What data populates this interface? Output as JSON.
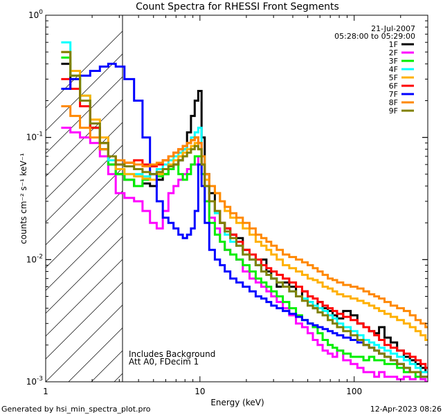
{
  "chart_data": {
    "type": "line",
    "title": "Count Spectra for RHESSI Front Segments",
    "xlabel": "Energy (keV)",
    "ylabel": "counts cm⁻² s⁻¹ keV⁻¹",
    "xscale": "log",
    "yscale": "log",
    "xlim": [
      1,
      300
    ],
    "ylim": [
      0.001,
      1
    ],
    "x_ticks": [
      {
        "value": 1,
        "label": "1"
      },
      {
        "value": 10,
        "label": "10"
      },
      {
        "value": 100,
        "label": "100"
      }
    ],
    "y_ticks": [
      {
        "value": 1,
        "base": "10",
        "exp": "0"
      },
      {
        "value": 0.1,
        "base": "10",
        "exp": "-1"
      },
      {
        "value": 0.01,
        "base": "10",
        "exp": "-2"
      },
      {
        "value": 0.001,
        "base": "10",
        "exp": "-3"
      }
    ],
    "date": "21-Jul-2007",
    "time_range": "05:28:00 to 05:29:00",
    "annotations": [
      "Includes Background",
      "Att A0, FDecim 1"
    ],
    "shaded_region": {
      "x_max": 3,
      "style": "diagonal hatch"
    },
    "footer_left": "Generated by hsi_min_spectra_plot.pro",
    "footer_right": "12-Apr-2023 08:26",
    "energies": [
      1.35,
      1.55,
      1.8,
      2.1,
      2.4,
      2.7,
      3.0,
      3.5,
      4,
      4.5,
      5,
      5.5,
      6,
      6.5,
      7,
      7.5,
      8,
      8.5,
      9,
      9.5,
      10,
      10.5,
      11,
      12,
      13,
      14,
      15,
      16.5,
      18,
      20,
      22,
      24,
      26,
      28,
      30,
      33,
      36,
      40,
      44,
      48,
      52,
      56,
      60,
      65,
      70,
      75,
      80,
      90,
      100,
      110,
      120,
      130,
      140,
      150,
      165,
      180,
      200,
      220,
      240,
      260,
      280,
      300
    ],
    "series": [
      {
        "name": "1F",
        "color": "#000000",
        "values": [
          0.4,
          0.3,
          0.2,
          0.12,
          0.08,
          0.06,
          0.05,
          0.045,
          0.04,
          0.042,
          0.04,
          0.045,
          0.05,
          0.055,
          0.06,
          0.065,
          0.08,
          0.11,
          0.15,
          0.2,
          0.24,
          0.1,
          0.05,
          0.035,
          0.025,
          0.02,
          0.018,
          0.016,
          0.015,
          0.012,
          0.011,
          0.009,
          0.01,
          0.008,
          0.007,
          0.006,
          0.0065,
          0.006,
          0.005,
          0.0055,
          0.0045,
          0.004,
          0.0045,
          0.004,
          0.0038,
          0.0035,
          0.0033,
          0.0038,
          0.0035,
          0.003,
          0.0028,
          0.0026,
          0.0025,
          0.0028,
          0.0023,
          0.0021,
          0.0018,
          0.0016,
          0.0015,
          0.0014,
          0.0013,
          0.0012
        ]
      },
      {
        "name": "2F",
        "color": "#ff00ff",
        "values": [
          0.12,
          0.11,
          0.1,
          0.09,
          0.07,
          0.05,
          0.035,
          0.032,
          0.03,
          0.025,
          0.02,
          0.018,
          0.025,
          0.035,
          0.04,
          0.045,
          0.05,
          0.055,
          0.06,
          0.06,
          0.07,
          0.05,
          0.03,
          0.022,
          0.018,
          0.014,
          0.012,
          0.011,
          0.01,
          0.008,
          0.007,
          0.0065,
          0.006,
          0.0055,
          0.005,
          0.0045,
          0.004,
          0.0035,
          0.003,
          0.0028,
          0.0025,
          0.0022,
          0.002,
          0.0018,
          0.0017,
          0.0016,
          0.0018,
          0.0015,
          0.0014,
          0.0013,
          0.0012,
          0.0012,
          0.0011,
          0.0012,
          0.0011,
          0.0011,
          0.00105,
          0.0011,
          0.00105,
          0.0011,
          0.00105,
          0.001
        ]
      },
      {
        "name": "3F",
        "color": "#00ee00",
        "values": [
          0.45,
          0.32,
          0.2,
          0.12,
          0.08,
          0.06,
          0.05,
          0.045,
          0.04,
          0.045,
          0.05,
          0.048,
          0.05,
          0.055,
          0.06,
          0.05,
          0.045,
          0.05,
          0.06,
          0.07,
          0.07,
          0.05,
          0.03,
          0.02,
          0.016,
          0.014,
          0.012,
          0.011,
          0.01,
          0.009,
          0.008,
          0.007,
          0.0065,
          0.006,
          0.0055,
          0.005,
          0.0045,
          0.004,
          0.0035,
          0.0032,
          0.003,
          0.0028,
          0.0025,
          0.0022,
          0.002,
          0.0019,
          0.0018,
          0.0017,
          0.0016,
          0.0016,
          0.0015,
          0.0016,
          0.0015,
          0.0015,
          0.0014,
          0.0014,
          0.0013,
          0.0012,
          0.0012,
          0.0011,
          0.0011,
          0.0011
        ]
      },
      {
        "name": "4F",
        "color": "#00ffff",
        "values": [
          0.6,
          0.35,
          0.22,
          0.13,
          0.09,
          0.065,
          0.055,
          0.05,
          0.05,
          0.048,
          0.05,
          0.055,
          0.06,
          0.065,
          0.07,
          0.075,
          0.08,
          0.09,
          0.1,
          0.11,
          0.12,
          0.07,
          0.04,
          0.03,
          0.024,
          0.02,
          0.016,
          0.014,
          0.013,
          0.011,
          0.01,
          0.009,
          0.008,
          0.0075,
          0.007,
          0.0065,
          0.006,
          0.0055,
          0.005,
          0.0048,
          0.0045,
          0.0042,
          0.004,
          0.0038,
          0.0035,
          0.0033,
          0.003,
          0.0028,
          0.0026,
          0.0024,
          0.0022,
          0.0021,
          0.002,
          0.0019,
          0.0018,
          0.0017,
          0.0016,
          0.0015,
          0.0014,
          0.0013,
          0.0012,
          0.0012
        ]
      },
      {
        "name": "5F",
        "color": "#ffb000",
        "values": [
          0.5,
          0.35,
          0.22,
          0.14,
          0.1,
          0.07,
          0.055,
          0.05,
          0.048,
          0.046,
          0.045,
          0.05,
          0.055,
          0.06,
          0.065,
          0.07,
          0.075,
          0.08,
          0.085,
          0.09,
          0.08,
          0.06,
          0.045,
          0.04,
          0.035,
          0.03,
          0.025,
          0.022,
          0.02,
          0.018,
          0.016,
          0.014,
          0.013,
          0.012,
          0.011,
          0.01,
          0.009,
          0.0085,
          0.008,
          0.0075,
          0.007,
          0.0068,
          0.0065,
          0.006,
          0.0058,
          0.0055,
          0.0052,
          0.005,
          0.0048,
          0.0046,
          0.0044,
          0.0042,
          0.004,
          0.0038,
          0.0036,
          0.0034,
          0.0032,
          0.003,
          0.0028,
          0.0026,
          0.0024,
          0.0022
        ]
      },
      {
        "name": "6F",
        "color": "#ff0000",
        "values": [
          0.3,
          0.25,
          0.18,
          0.12,
          0.09,
          0.07,
          0.06,
          0.062,
          0.065,
          0.06,
          0.058,
          0.06,
          0.065,
          0.07,
          0.075,
          0.08,
          0.085,
          0.09,
          0.095,
          0.1,
          0.09,
          0.06,
          0.04,
          0.03,
          0.025,
          0.02,
          0.018,
          0.016,
          0.014,
          0.012,
          0.011,
          0.01,
          0.009,
          0.0085,
          0.008,
          0.0075,
          0.007,
          0.0065,
          0.006,
          0.0055,
          0.005,
          0.0048,
          0.0045,
          0.0042,
          0.004,
          0.0038,
          0.0036,
          0.0034,
          0.0032,
          0.003,
          0.0028,
          0.0026,
          0.0024,
          0.0022,
          0.002,
          0.0019,
          0.0018,
          0.0017,
          0.0016,
          0.0015,
          0.0014,
          0.0013
        ]
      },
      {
        "name": "7F",
        "color": "#0000ff",
        "values": [
          0.25,
          0.3,
          0.32,
          0.35,
          0.38,
          0.4,
          0.38,
          0.3,
          0.2,
          0.1,
          0.05,
          0.03,
          0.022,
          0.02,
          0.018,
          0.016,
          0.015,
          0.016,
          0.018,
          0.025,
          0.06,
          0.04,
          0.02,
          0.012,
          0.01,
          0.009,
          0.008,
          0.007,
          0.0065,
          0.006,
          0.0055,
          0.005,
          0.0048,
          0.0045,
          0.0042,
          0.004,
          0.0038,
          0.0036,
          0.0034,
          0.0032,
          0.003,
          0.0029,
          0.0028,
          0.0027,
          0.0026,
          0.0025,
          0.0024,
          0.0023,
          0.0022,
          0.0021,
          0.002,
          0.0019,
          0.0018,
          0.0017,
          0.0016,
          0.0015,
          0.0014,
          0.0013,
          0.0012,
          0.0012,
          0.0011,
          0.0011
        ]
      },
      {
        "name": "8F",
        "color": "#ff8800",
        "values": [
          0.18,
          0.15,
          0.12,
          0.1,
          0.08,
          0.07,
          0.065,
          0.062,
          0.06,
          0.058,
          0.06,
          0.062,
          0.065,
          0.07,
          0.075,
          0.08,
          0.085,
          0.09,
          0.095,
          0.1,
          0.09,
          0.07,
          0.05,
          0.04,
          0.035,
          0.03,
          0.027,
          0.024,
          0.022,
          0.02,
          0.018,
          0.016,
          0.015,
          0.014,
          0.013,
          0.012,
          0.011,
          0.0105,
          0.01,
          0.0095,
          0.009,
          0.0085,
          0.008,
          0.0075,
          0.007,
          0.0068,
          0.0065,
          0.0062,
          0.006,
          0.0058,
          0.0055,
          0.0052,
          0.005,
          0.0048,
          0.0045,
          0.0042,
          0.004,
          0.0038,
          0.0035,
          0.0032,
          0.003,
          0.0028
        ]
      },
      {
        "name": "9F",
        "color": "#808000",
        "values": [
          0.5,
          0.32,
          0.2,
          0.13,
          0.09,
          0.07,
          0.06,
          0.058,
          0.055,
          0.052,
          0.05,
          0.052,
          0.055,
          0.058,
          0.06,
          0.065,
          0.07,
          0.075,
          0.08,
          0.085,
          0.08,
          0.06,
          0.04,
          0.03,
          0.025,
          0.02,
          0.017,
          0.015,
          0.013,
          0.011,
          0.01,
          0.009,
          0.008,
          0.0075,
          0.007,
          0.0065,
          0.006,
          0.0055,
          0.005,
          0.0046,
          0.0042,
          0.004,
          0.0037,
          0.0035,
          0.0032,
          0.003,
          0.0028,
          0.0026,
          0.0024,
          0.0022,
          0.002,
          0.0019,
          0.0018,
          0.0017,
          0.0016,
          0.0015,
          0.0014,
          0.0013,
          0.0012,
          0.0012,
          0.0011,
          0.0011
        ]
      }
    ]
  }
}
